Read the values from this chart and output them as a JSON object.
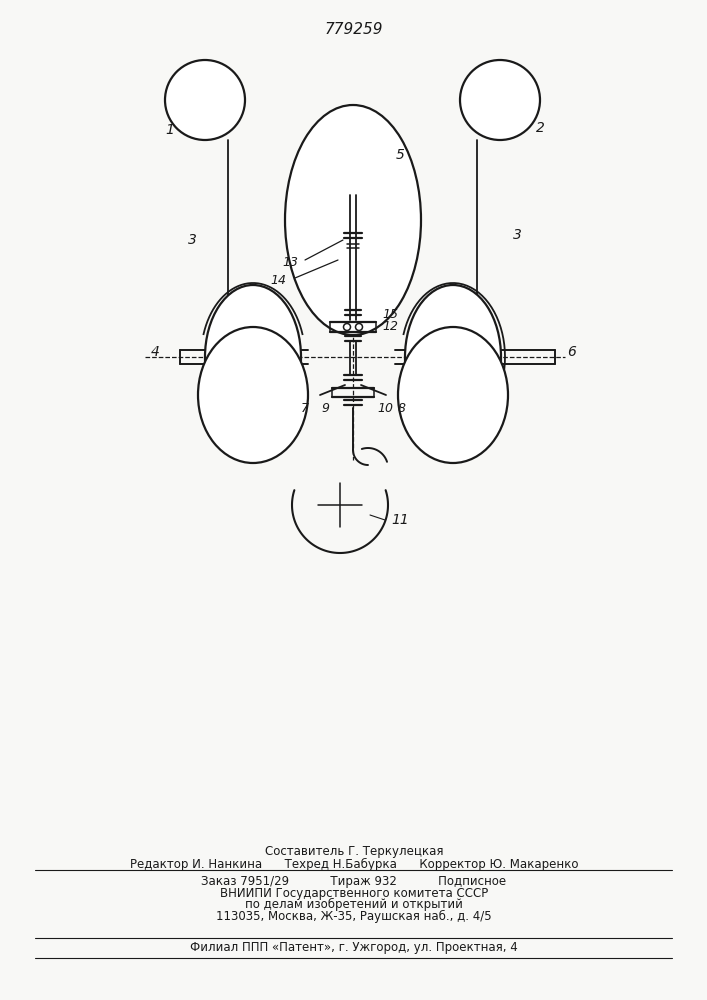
{
  "title": "779259",
  "bg_color": "#f8f8f6",
  "line_color": "#1a1a1a",
  "lw_main": 1.6,
  "lw_thin": 1.1,
  "lw_dash": 0.9,
  "footer": {
    "line1": "Составитель Г. Теркулецкая",
    "line2": "Редактор И. Нанкина      Техред Н.Бабурка      Корректор Ю. Макаренко",
    "line3": "Заказ 7951/29           Тираж 932           Подписное",
    "line4": "ВНИИПИ Государственного комитета СССР",
    "line5": "по делам изобретений и открытий",
    "line6": "113035, Москва, Ж-35, Раушская наб., д. 4/5",
    "line7": "Филиал ППП «Патент», г. Ужгород, ул. Проектная, 4"
  }
}
